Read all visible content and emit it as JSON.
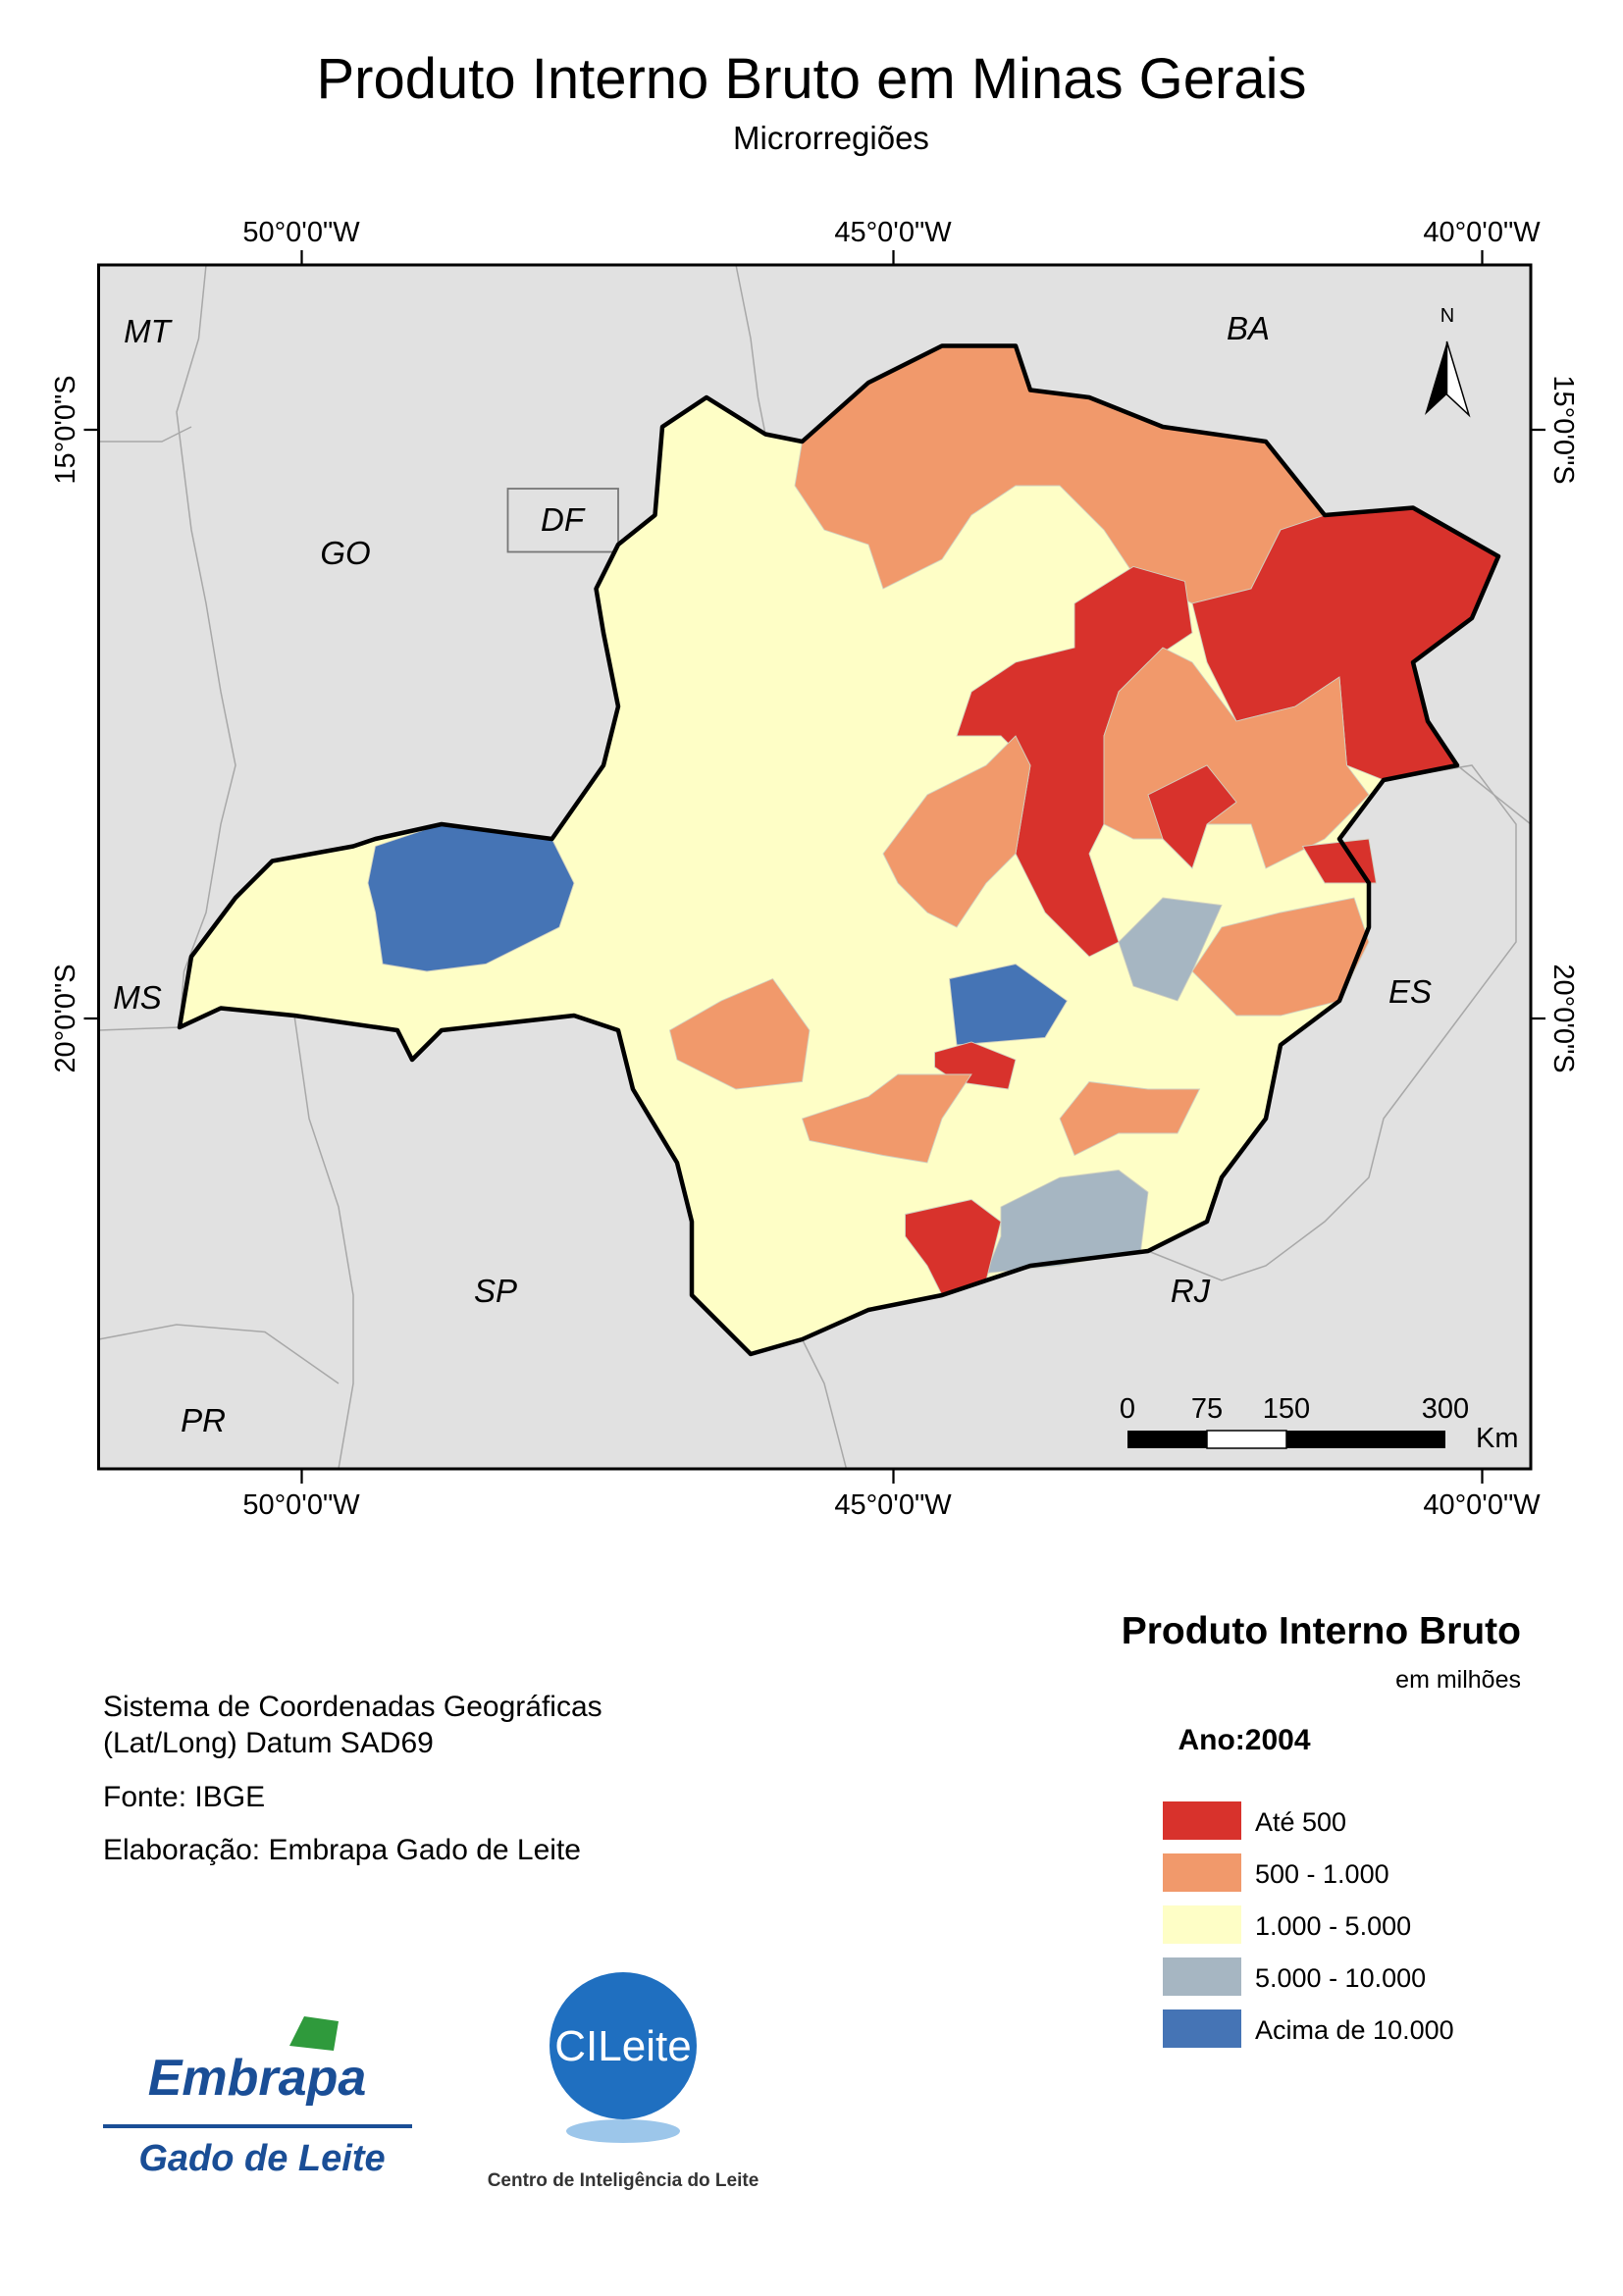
{
  "header": {
    "title": "Produto Interno Bruto em Minas Gerais",
    "subtitle": "Microrregiões"
  },
  "map": {
    "lon_labels": [
      "50°0'0\"W",
      "45°0'0\"W",
      "40°0'0\"W"
    ],
    "lat_labels": [
      "15°0'0\"S",
      "20°0'0\"S"
    ],
    "states": [
      "MT",
      "BA",
      "GO",
      "DF",
      "MS",
      "ES",
      "SP",
      "RJ",
      "PR"
    ],
    "north": "N",
    "scale_labels": [
      "0",
      "75",
      "150",
      "300"
    ],
    "scale_unit": "Km"
  },
  "legend": {
    "title": "Produto Interno Bruto",
    "subtitle": "em milhões",
    "year": "Ano:2004",
    "items": [
      {
        "label": "Até 500",
        "color": "#d8322c"
      },
      {
        "label": "500 - 1.000",
        "color": "#f1996b"
      },
      {
        "label": "1.000 - 5.000",
        "color": "#fefec6"
      },
      {
        "label": "5.000 - 10.000",
        "color": "#a6b6c2"
      },
      {
        "label": "Acima de 10.000",
        "color": "#4574b5"
      }
    ]
  },
  "notes": [
    "Sistema de Coordenadas Geográficas",
    "(Lat/Long) Datum SAD69",
    "Fonte: IBGE",
    "Elaboração: Embrapa Gado de Leite"
  ],
  "logos": {
    "embrapa": "Embrapa",
    "embrapa_sub": "Gado de Leite",
    "cileite": "CILeite",
    "cileite_sub": "Centro de Inteligência do Leite"
  }
}
